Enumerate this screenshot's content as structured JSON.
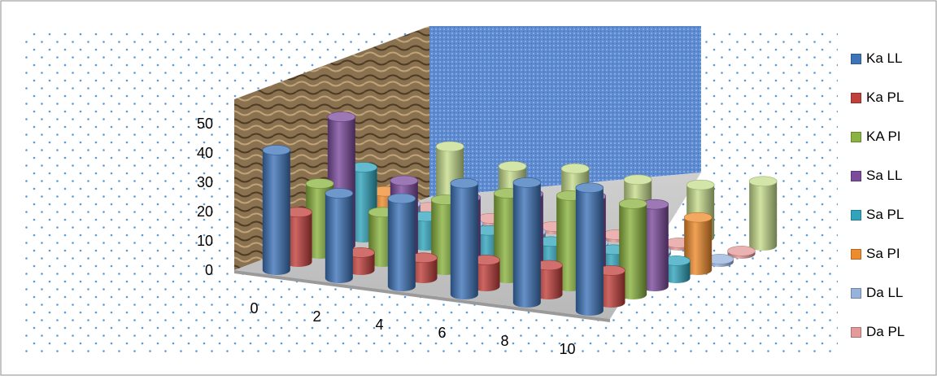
{
  "chart_data": {
    "type": "bar",
    "style": "3d-cylinder",
    "x": [
      "0",
      "2",
      "4",
      "6",
      "8",
      "10"
    ],
    "z_ticks": [
      "0",
      "10",
      "20",
      "30",
      "40",
      "50"
    ],
    "zlim": [
      0,
      50
    ],
    "legend_position": "right",
    "grid": false,
    "series": [
      {
        "name": "Ka LL",
        "color": "#3e74b9",
        "values": [
          41,
          29,
          30,
          38,
          41,
          42
        ]
      },
      {
        "name": "Ka PL",
        "color": "#c0403c",
        "values": [
          17,
          6,
          7,
          9,
          10,
          11
        ]
      },
      {
        "name": "KA PI",
        "color": "#8ab33f",
        "values": [
          24,
          17,
          24,
          29,
          31,
          31
        ]
      },
      {
        "name": "Sa LL",
        "color": "#7b4b9c",
        "values": [
          44,
          25,
          22,
          26,
          28,
          28
        ]
      },
      {
        "name": "Sa PL",
        "color": "#2fa4bc",
        "values": [
          24,
          10,
          8,
          7,
          7,
          6
        ]
      },
      {
        "name": "Sa PI",
        "color": "#ee8b2c",
        "values": [
          13,
          8,
          8,
          9,
          11,
          18
        ]
      },
      {
        "name": "Da LL",
        "color": "#97b3dc",
        "values": [
          6,
          2,
          2,
          1,
          1,
          1
        ]
      },
      {
        "name": "Da PL",
        "color": "#e39a98",
        "values": [
          2,
          1,
          1,
          1,
          1,
          1
        ]
      },
      {
        "name": "",
        "color": "#c6dc8c",
        "values": [
          20,
          16,
          18,
          17,
          18,
          22
        ]
      }
    ]
  }
}
